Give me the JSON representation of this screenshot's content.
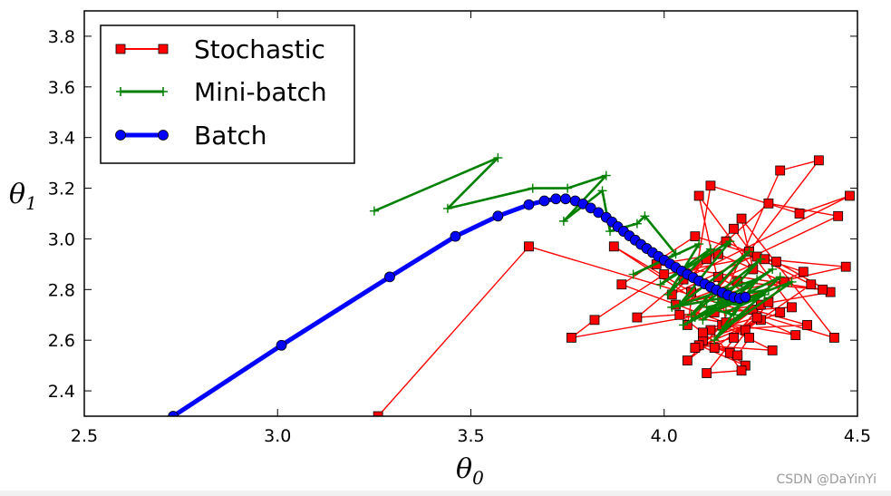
{
  "watermark": "CSDN @DaYinYi",
  "chart_data": {
    "type": "line",
    "title": "",
    "xlabel": "θ0",
    "ylabel": "θ1",
    "xlabel_main": "θ",
    "xlabel_sub": "0",
    "ylabel_main": "θ",
    "ylabel_sub": "1",
    "xlim": [
      2.5,
      4.5
    ],
    "ylim": [
      2.3,
      3.9
    ],
    "xticks": [
      2.5,
      3.0,
      3.5,
      4.0,
      4.5
    ],
    "xtick_labels": [
      "2.5",
      "3.0",
      "3.5",
      "4.0",
      "4.5"
    ],
    "yticks": [
      2.4,
      2.6,
      2.8,
      3.0,
      3.2,
      3.4,
      3.6,
      3.8
    ],
    "ytick_labels": [
      "2.4",
      "2.6",
      "2.8",
      "3.0",
      "3.2",
      "3.4",
      "3.6",
      "3.8"
    ],
    "grid": false,
    "legend_position": "top-left",
    "series": [
      {
        "name": "Stochastic",
        "color": "#ff0000",
        "marker": "square",
        "x": [
          3.26,
          3.65,
          4.44,
          4.2,
          4.23,
          4.09,
          4.15,
          4.3,
          4.4,
          4.22,
          4.06,
          4.12,
          4.35,
          4.48,
          4.05,
          4.18,
          4.33,
          3.93,
          4.11,
          4.27,
          4.45,
          4.02,
          4.16,
          4.38,
          4.21,
          3.89,
          4.08,
          4.29,
          4.43,
          3.76,
          3.82,
          4.0,
          4.24,
          4.36,
          4.13,
          3.87,
          4.07,
          4.26,
          4.47,
          4.03,
          4.19,
          4.41,
          3.98,
          4.14,
          4.31,
          4.17,
          4.1,
          4.25,
          4.34,
          4.04,
          4.21,
          4.09,
          4.28,
          4.15,
          4.06,
          4.23,
          4.37,
          4.12,
          4.2,
          4.11,
          4.25,
          4.18,
          4.08,
          4.3,
          4.14,
          4.16,
          4.22,
          4.19,
          4.13,
          4.24,
          4.1,
          4.27
        ],
        "y": [
          2.3,
          2.97,
          2.61,
          3.08,
          2.88,
          3.17,
          2.76,
          3.27,
          3.31,
          2.95,
          2.66,
          3.21,
          3.1,
          3.17,
          2.84,
          3.04,
          2.73,
          2.69,
          2.92,
          3.14,
          3.09,
          2.78,
          2.99,
          2.82,
          2.64,
          2.82,
          3.01,
          2.91,
          2.79,
          2.61,
          2.68,
          2.86,
          2.93,
          2.87,
          2.71,
          2.97,
          2.79,
          2.92,
          2.89,
          2.74,
          2.83,
          2.8,
          2.9,
          2.94,
          2.83,
          2.55,
          2.6,
          2.68,
          2.62,
          2.7,
          2.5,
          2.58,
          2.56,
          2.66,
          2.52,
          2.72,
          2.66,
          2.64,
          2.48,
          2.47,
          2.74,
          2.61,
          2.57,
          2.71,
          2.85,
          2.67,
          2.61,
          2.54,
          2.57,
          2.69,
          2.63,
          2.75
        ]
      },
      {
        "name": "Mini-batch",
        "color": "#008000",
        "marker": "plus",
        "x": [
          3.25,
          3.57,
          3.44,
          3.66,
          3.75,
          3.85,
          3.74,
          3.84,
          3.86,
          3.93,
          3.95,
          4.03,
          3.92,
          4.09,
          4.01,
          4.12,
          3.99,
          4.17,
          4.04,
          4.22,
          4.07,
          4.25,
          4.1,
          4.28,
          4.05,
          4.3,
          4.13,
          4.24,
          4.02,
          4.27,
          4.15,
          4.33,
          4.08,
          4.21,
          4.18,
          4.11,
          4.26,
          4.16,
          4.23,
          4.19,
          4.14,
          4.2
        ],
        "y": [
          3.11,
          3.32,
          3.12,
          3.2,
          3.2,
          3.25,
          3.07,
          3.19,
          3.03,
          3.06,
          3.09,
          2.94,
          2.86,
          2.98,
          2.78,
          2.96,
          2.82,
          2.99,
          2.74,
          2.95,
          2.7,
          2.92,
          2.68,
          2.88,
          2.66,
          2.85,
          2.6,
          2.84,
          2.73,
          2.8,
          2.64,
          2.83,
          2.69,
          2.77,
          2.7,
          2.73,
          2.78,
          2.71,
          2.76,
          2.74,
          2.75,
          2.77
        ]
      },
      {
        "name": "Batch",
        "color": "#0000ff",
        "marker": "circle",
        "x": [
          2.73,
          3.01,
          3.29,
          3.46,
          3.57,
          3.65,
          3.69,
          3.72,
          3.745,
          3.77,
          3.79,
          3.81,
          3.83,
          3.85,
          3.865,
          3.88,
          3.895,
          3.91,
          3.925,
          3.94,
          3.955,
          3.97,
          3.985,
          4.0,
          4.015,
          4.03,
          4.045,
          4.06,
          4.075,
          4.09,
          4.105,
          4.12,
          4.135,
          4.15,
          4.165,
          4.18,
          4.195,
          4.21
        ],
        "y": [
          2.3,
          2.58,
          2.85,
          3.01,
          3.09,
          3.135,
          3.15,
          3.158,
          3.158,
          3.15,
          3.138,
          3.122,
          3.104,
          3.085,
          3.067,
          3.048,
          3.03,
          3.012,
          2.995,
          2.978,
          2.962,
          2.946,
          2.931,
          2.916,
          2.901,
          2.887,
          2.873,
          2.86,
          2.847,
          2.834,
          2.822,
          2.81,
          2.799,
          2.788,
          2.778,
          2.769,
          2.765,
          2.77
        ]
      }
    ]
  }
}
